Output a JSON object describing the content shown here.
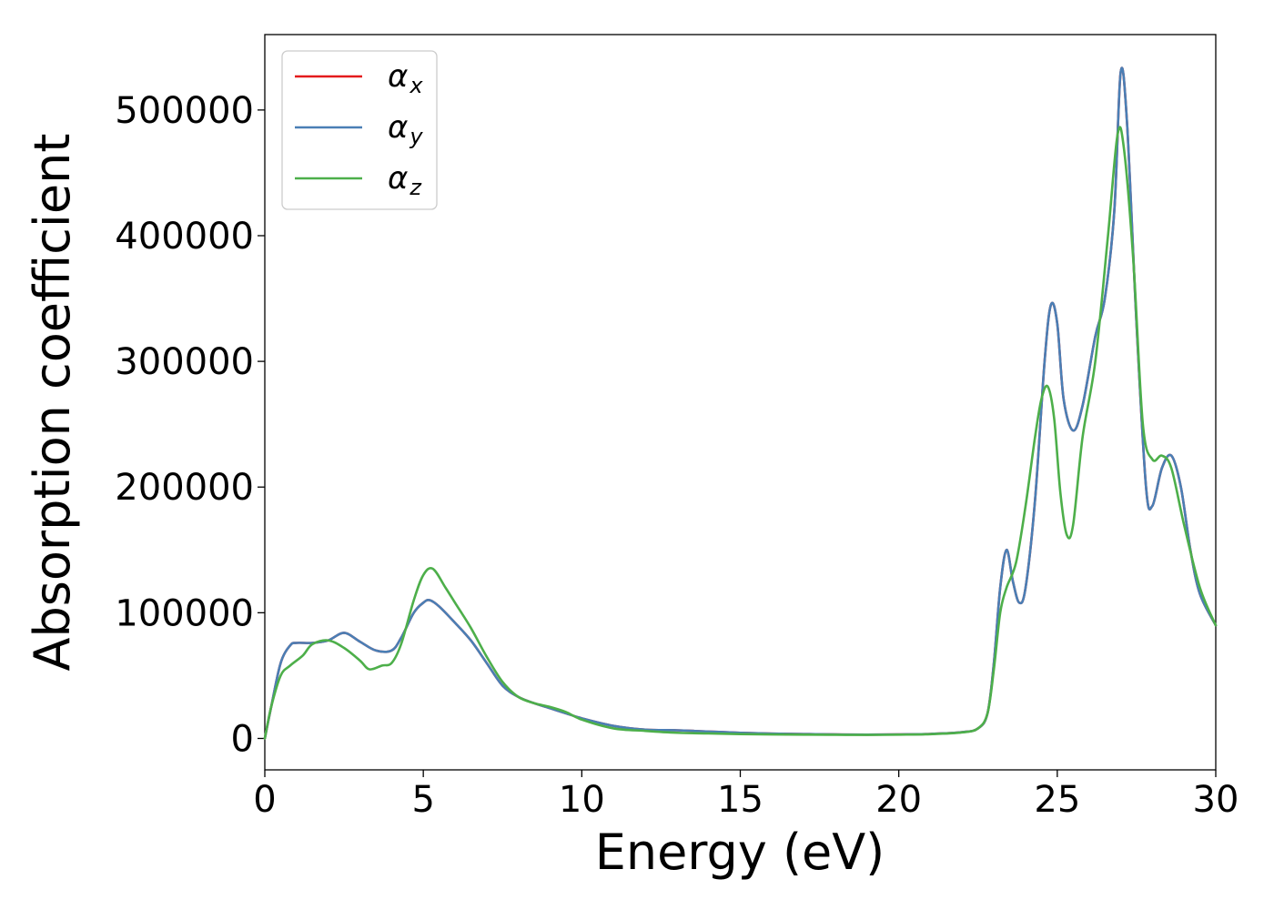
{
  "chart_data": {
    "type": "line",
    "title": "",
    "xlabel": "Energy (eV)",
    "ylabel": "Absorption coefficient",
    "xlim": [
      0,
      30
    ],
    "ylim": [
      -25000,
      560000
    ],
    "xticks": [
      0,
      5,
      10,
      15,
      20,
      25,
      30
    ],
    "xtick_labels": [
      "0",
      "5",
      "10",
      "15",
      "20",
      "25",
      "30"
    ],
    "yticks": [
      0,
      100000,
      200000,
      300000,
      400000,
      500000
    ],
    "ytick_labels": [
      "0",
      "100000",
      "200000",
      "300000",
      "400000",
      "500000"
    ],
    "grid": false,
    "legend_position": "top-left",
    "series": [
      {
        "name_base": "α",
        "name_sub": "x",
        "color": "#e41a1c",
        "x": [
          0,
          0.2,
          0.5,
          0.8,
          1.0,
          1.5,
          2.0,
          2.5,
          3.0,
          3.5,
          4.0,
          4.3,
          4.7,
          5.0,
          5.2,
          5.5,
          6.0,
          6.5,
          7.0,
          7.5,
          8.0,
          8.5,
          9.0,
          9.5,
          10,
          11,
          12,
          13,
          14,
          15,
          16,
          17,
          18,
          19,
          20,
          21,
          22,
          22.5,
          22.8,
          23.0,
          23.2,
          23.4,
          23.6,
          23.8,
          24.0,
          24.3,
          24.6,
          24.8,
          25.0,
          25.2,
          25.5,
          25.8,
          26.2,
          26.5,
          26.8,
          27.0,
          27.2,
          27.5,
          27.8,
          28.0,
          28.3,
          28.6,
          28.9,
          29.2,
          29.5,
          30
        ],
        "y": [
          0,
          25000,
          60000,
          74000,
          76000,
          76000,
          78000,
          84000,
          77000,
          70000,
          70000,
          80000,
          100000,
          108000,
          110000,
          105000,
          92000,
          78000,
          60000,
          42000,
          33000,
          28000,
          24000,
          20000,
          16000,
          10000,
          7000,
          6500,
          5500,
          4500,
          3800,
          3500,
          3200,
          3000,
          3200,
          3600,
          5000,
          8000,
          20000,
          60000,
          120000,
          150000,
          125000,
          108000,
          120000,
          190000,
          300000,
          345000,
          330000,
          270000,
          245000,
          265000,
          320000,
          350000,
          420000,
          530000,
          490000,
          330000,
          200000,
          185000,
          215000,
          225000,
          200000,
          150000,
          115000,
          90000
        ]
      },
      {
        "name_base": "α",
        "name_sub": "y",
        "color": "#4a7fb5",
        "x": [
          0,
          0.2,
          0.5,
          0.8,
          1.0,
          1.5,
          2.0,
          2.5,
          3.0,
          3.5,
          4.0,
          4.3,
          4.7,
          5.0,
          5.2,
          5.5,
          6.0,
          6.5,
          7.0,
          7.5,
          8.0,
          8.5,
          9.0,
          9.5,
          10,
          11,
          12,
          13,
          14,
          15,
          16,
          17,
          18,
          19,
          20,
          21,
          22,
          22.5,
          22.8,
          23.0,
          23.2,
          23.4,
          23.6,
          23.8,
          24.0,
          24.3,
          24.6,
          24.8,
          25.0,
          25.2,
          25.5,
          25.8,
          26.2,
          26.5,
          26.8,
          27.0,
          27.2,
          27.5,
          27.8,
          28.0,
          28.3,
          28.6,
          28.9,
          29.2,
          29.5,
          30
        ],
        "y": [
          0,
          25000,
          60000,
          74000,
          76000,
          76000,
          78000,
          84000,
          77000,
          70000,
          70000,
          80000,
          100000,
          108000,
          110000,
          105000,
          92000,
          78000,
          60000,
          42000,
          33000,
          28000,
          24000,
          20000,
          16000,
          10000,
          7000,
          6500,
          5500,
          4500,
          3800,
          3500,
          3200,
          3000,
          3200,
          3600,
          5000,
          8000,
          20000,
          60000,
          120000,
          150000,
          125000,
          108000,
          120000,
          190000,
          300000,
          345000,
          330000,
          270000,
          245000,
          265000,
          320000,
          350000,
          420000,
          530000,
          490000,
          330000,
          200000,
          185000,
          215000,
          225000,
          200000,
          150000,
          115000,
          90000
        ]
      },
      {
        "name_base": "α",
        "name_sub": "z",
        "color": "#4daf4a",
        "x": [
          0,
          0.2,
          0.5,
          0.8,
          1.2,
          1.5,
          2.0,
          2.5,
          3.0,
          3.3,
          3.7,
          4.0,
          4.3,
          4.7,
          5.0,
          5.3,
          5.7,
          6.0,
          6.5,
          7.0,
          7.5,
          8.0,
          8.5,
          9.0,
          9.5,
          10,
          11,
          12,
          13,
          14,
          15,
          16,
          17,
          18,
          19,
          20,
          21,
          22,
          22.5,
          22.8,
          23.0,
          23.2,
          23.4,
          23.7,
          24.0,
          24.3,
          24.5,
          24.7,
          24.9,
          25.1,
          25.3,
          25.5,
          25.8,
          26.2,
          26.6,
          26.9,
          27.1,
          27.4,
          27.7,
          28.0,
          28.3,
          28.6,
          29.0,
          29.5,
          30
        ],
        "y": [
          0,
          25000,
          50000,
          58000,
          66000,
          75000,
          78000,
          72000,
          62000,
          55000,
          58000,
          60000,
          75000,
          110000,
          130000,
          135000,
          120000,
          108000,
          88000,
          65000,
          45000,
          33000,
          28000,
          25000,
          21000,
          15000,
          8000,
          6000,
          4500,
          4000,
          3500,
          3200,
          3000,
          2900,
          2800,
          3000,
          3400,
          4800,
          8000,
          20000,
          55000,
          100000,
          120000,
          140000,
          185000,
          240000,
          270000,
          280000,
          255000,
          195000,
          162000,
          170000,
          240000,
          300000,
          400000,
          480000,
          470000,
          380000,
          250000,
          222000,
          225000,
          215000,
          170000,
          120000,
          90000
        ]
      }
    ]
  }
}
